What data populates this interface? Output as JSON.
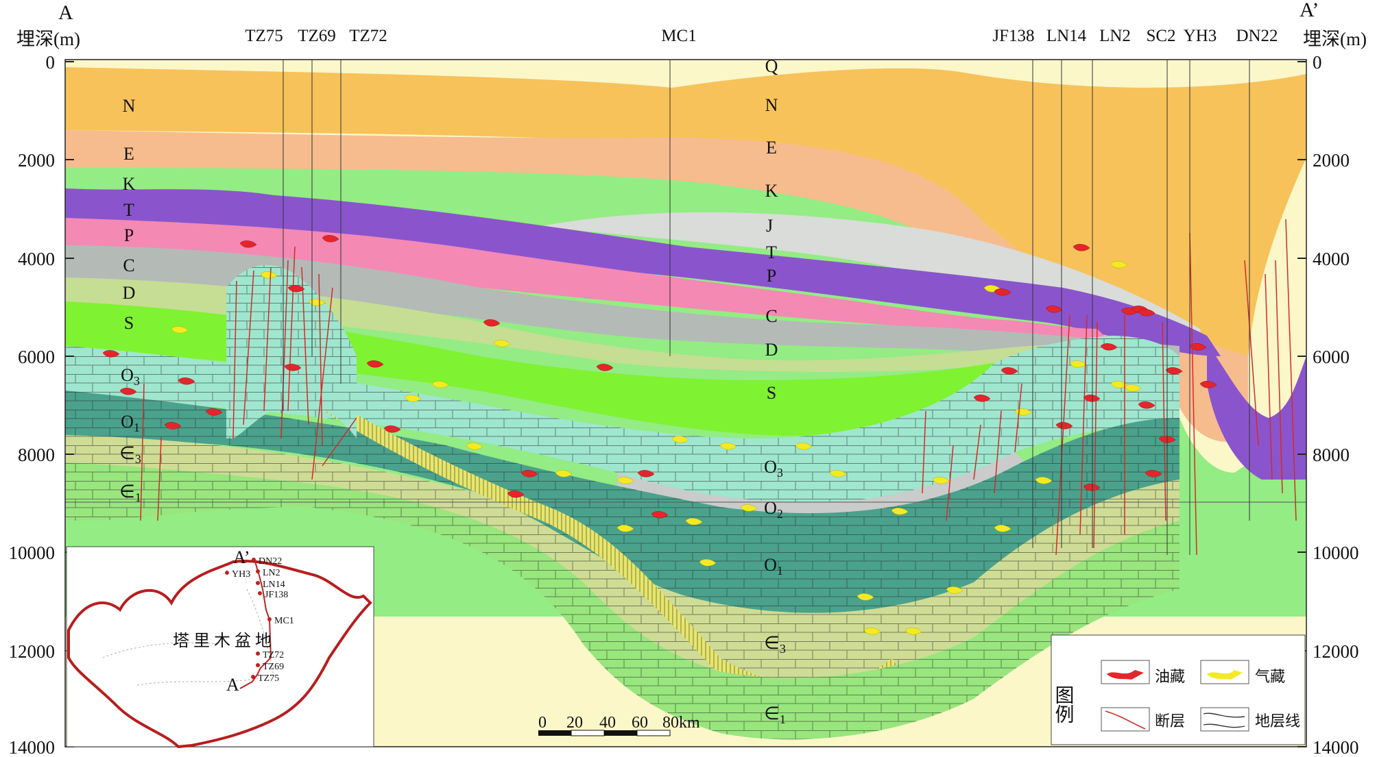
{
  "section": {
    "start_label": "A",
    "end_label": "A’",
    "left_axis_title": "埋深(m)",
    "right_axis_title": "埋深(m)",
    "depth_ticks": [
      "0",
      "2000",
      "4000",
      "6000",
      "8000",
      "10000",
      "12000",
      "14000"
    ],
    "wells": [
      "TZ75",
      "TZ69",
      "TZ72",
      "MC1",
      "JF138",
      "LN14",
      "LN2",
      "SC2",
      "YH3",
      "DN22"
    ],
    "left_layer_labels": [
      "N",
      "E",
      "K",
      "T",
      "P",
      "C",
      "D",
      "S",
      "O3",
      "O1",
      "∈3",
      "∈1"
    ],
    "center_layer_labels": [
      "Q",
      "N",
      "E",
      "K",
      "J",
      "T",
      "P",
      "C",
      "D",
      "S",
      "O3",
      "O2",
      "O1",
      "∈3",
      "∈1"
    ]
  },
  "inset_map": {
    "basin_name": "塔 里 木 盆 地",
    "point_top": "A’",
    "point_bottom": "A",
    "wells": [
      "DN22",
      "YH3",
      "LN2",
      "LN14",
      "JF138",
      "MC1",
      "TZ72",
      "TZ69",
      "TZ75"
    ]
  },
  "scale_bar": {
    "ticks": [
      "0",
      "20",
      "40",
      "60"
    ],
    "end_label": "80km"
  },
  "legend": {
    "title": "图例",
    "items": [
      {
        "label": "油藏",
        "color": "#e5252c"
      },
      {
        "label": "气藏",
        "color": "#f3ea23"
      },
      {
        "label": "断层",
        "color": "#d22a2a"
      },
      {
        "label": "地层线",
        "color": "#333333"
      }
    ]
  },
  "colors": {
    "N": "#f7c25a",
    "E": "#f6bc8e",
    "K": "#93ec84",
    "J": "#d9dcd8",
    "T": "#8a55cc",
    "P": "#f489b4",
    "C": "#b4bab6",
    "D": "#c6dd94",
    "S": "#7ff232",
    "O3": "#9fe6cf",
    "O2": "#c9ccca",
    "O1": "#4aa28c",
    "E3": "#cfdc95",
    "E1": "#98e67d",
    "basement": "#fbf7c8",
    "oil": "#e5252c",
    "gas": "#f3ea23",
    "fault": "#d22a2a"
  }
}
